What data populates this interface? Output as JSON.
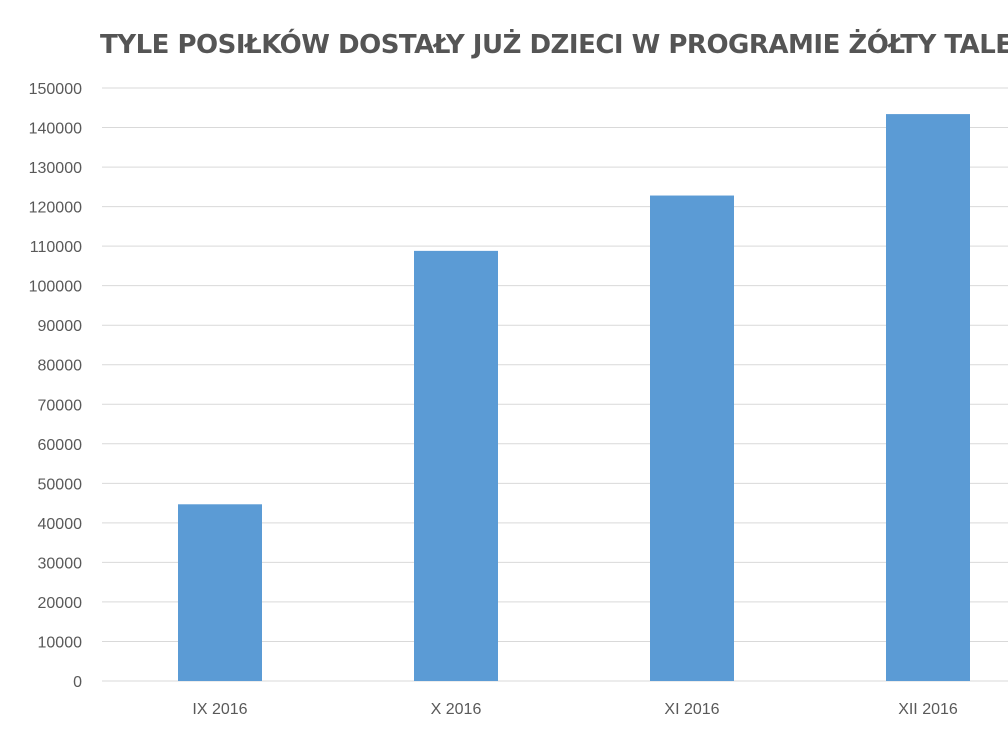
{
  "chart_data": {
    "type": "bar",
    "title": "TYLE POSIŁKÓW DOSTAŁY JUŻ DZIECI W PROGRAMIE ŻÓŁTY TALERZ",
    "xlabel": "",
    "ylabel": "",
    "categories": [
      "IX 2016",
      "X 2016",
      "XI 2016",
      "XII 2016"
    ],
    "values": [
      44700,
      108800,
      122800,
      143400
    ],
    "ylim": [
      0,
      150000
    ],
    "yticks": [
      "0",
      "10000",
      "20000",
      "30000",
      "40000",
      "50000",
      "60000",
      "70000",
      "80000",
      "90000",
      "100000",
      "110000",
      "120000",
      "130000",
      "140000",
      "150000"
    ],
    "grid": true,
    "legend": "none",
    "colors": {
      "bar": "#5B9BD5",
      "grid": "#D9D9D9",
      "text": "#595959",
      "title": "#555555"
    }
  }
}
